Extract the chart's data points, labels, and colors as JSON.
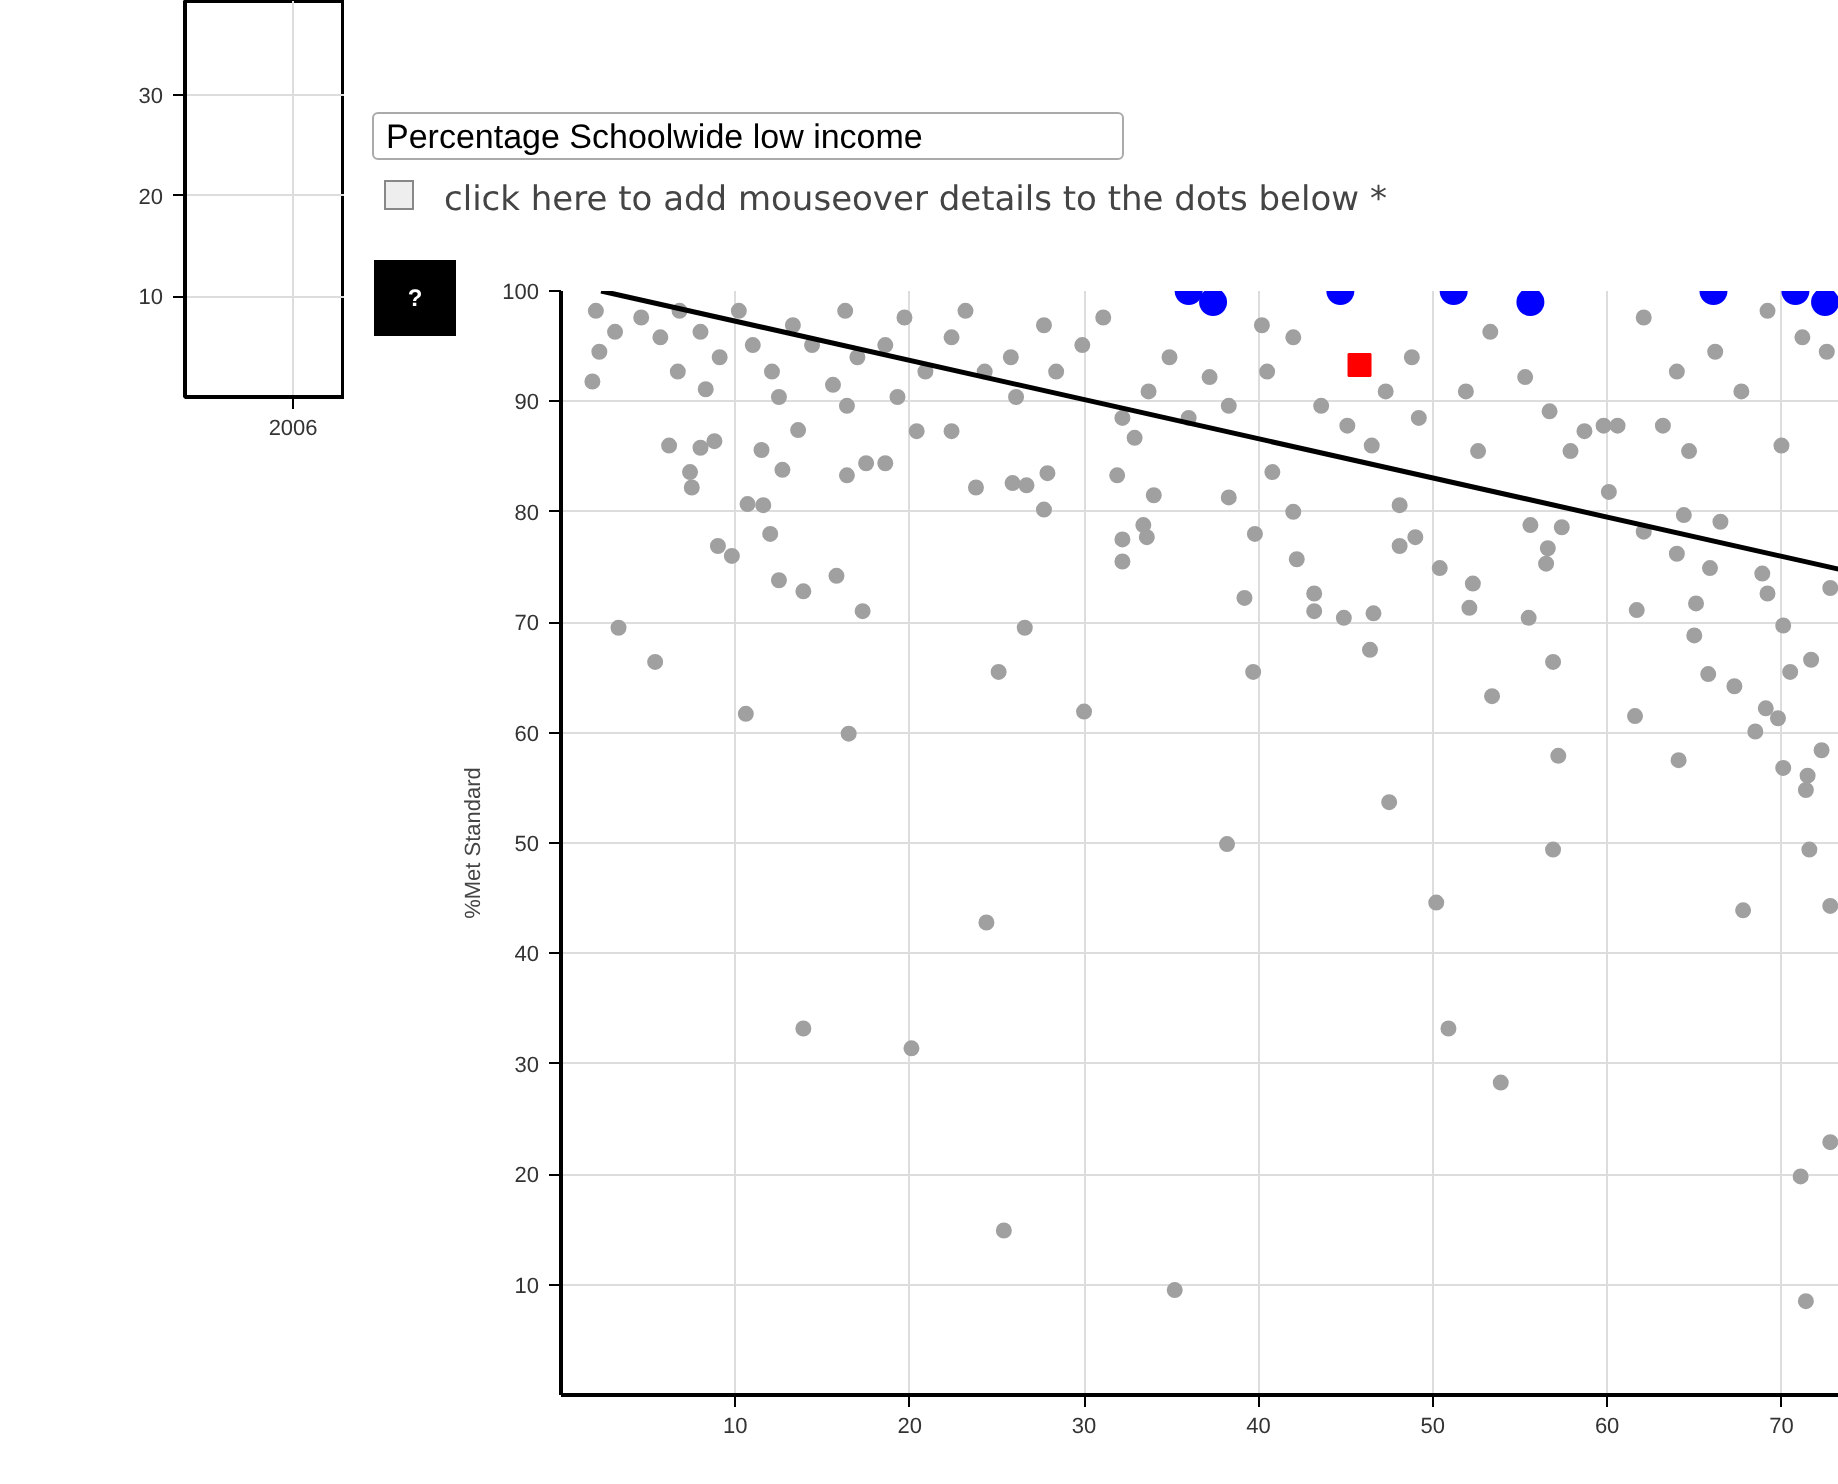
{
  "chart_data": [
    {
      "type": "line",
      "categories": [
        "2006"
      ],
      "values": [
        null
      ],
      "ylim": [
        0,
        39.4
      ],
      "yticks": [
        10,
        20,
        30
      ],
      "grid": true
    },
    {
      "type": "scatter",
      "ylabel": "%Met Standard",
      "annotations": [
        "Percentage Schoolwide low income",
        "click here to add mouseover details to the dots below *",
        "?"
      ],
      "xlim": [
        0,
        73.3
      ],
      "ylim": [
        0,
        100
      ],
      "xticks": [
        10,
        20,
        30,
        40,
        50,
        60,
        70
      ],
      "yticks": [
        10,
        20,
        30,
        40,
        50,
        60,
        70,
        80,
        90,
        100
      ],
      "grid": true,
      "marker": "circle",
      "series": [
        {
          "color": "#a0a0a0",
          "x": [
            13.9,
            20.1,
            24.4,
            25.4,
            35.2,
            38.2,
            47.5,
            50.2,
            50.9,
            53.9,
            56.9,
            67.8,
            71.6,
            72.8,
            72.8,
            71.1,
            71.4,
            3.3,
            5.4,
            10.6,
            16.5,
            30.0,
            25.1,
            26.6,
            17.3,
            15.8,
            13.9,
            12.5,
            12.0,
            9.0,
            9.8,
            10.7,
            11.6,
            7.5,
            7.4,
            6.2,
            8.0,
            8.8,
            11.5,
            12.7,
            13.6,
            16.4,
            17.5,
            18.6,
            1.8,
            8.3,
            23.8,
            25.9,
            26.7,
            27.7,
            27.9,
            31.9,
            32.2,
            32.2,
            33.4,
            33.6,
            34.0,
            39.7,
            39.2,
            43.2,
            43.2,
            44.9,
            46.6,
            46.4,
            53.4,
            56.9,
            57.2,
            61.6,
            64.1,
            67.3,
            65.8,
            65.0,
            65.1,
            61.7,
            55.5,
            52.1,
            52.3,
            56.5,
            56.6,
            57.4,
            55.6,
            64.0,
            65.9,
            68.9,
            69.2,
            68.5,
            69.1,
            69.8,
            70.1,
            70.5,
            71.7,
            72.3,
            70.1,
            71.5,
            71.4,
            66.5,
            64.4,
            62.1,
            60.1,
            42.2,
            39.8,
            48.1,
            49.0,
            50.4,
            72.8,
            2.0,
            3.1,
            2.2,
            4.6,
            5.7,
            6.8,
            8.0,
            6.7,
            9.1,
            10.2,
            11.0,
            12.1,
            13.3,
            14.4,
            15.6,
            17.0,
            16.3,
            18.6,
            19.7,
            20.9,
            22.4,
            23.2,
            24.3,
            25.8,
            26.1,
            27.7,
            28.4,
            29.9,
            31.1,
            32.2,
            32.9,
            33.7,
            34.9,
            36.0,
            19.3,
            20.4,
            22.4,
            16.4,
            12.5,
            37.2,
            38.3,
            40.5,
            40.2,
            42.0,
            43.6,
            45.1,
            47.3,
            48.8,
            49.2,
            51.9,
            53.3,
            52.6,
            55.3,
            56.7,
            58.7,
            59.8,
            62.1,
            64.0,
            66.2,
            67.7,
            63.2,
            64.7,
            69.2,
            71.2,
            70.0,
            72.6,
            40.8,
            46.5,
            38.3,
            42.0,
            48.1,
            57.9,
            60.6
          ],
          "values": [
            33.2,
            31.4,
            42.8,
            14.9,
            9.5,
            49.9,
            53.7,
            44.6,
            33.2,
            28.3,
            49.4,
            43.9,
            49.4,
            44.3,
            22.9,
            19.8,
            8.5,
            69.5,
            66.4,
            61.7,
            59.9,
            61.9,
            65.5,
            69.5,
            71.0,
            74.2,
            72.8,
            73.8,
            78.0,
            76.9,
            76.0,
            80.7,
            80.6,
            82.2,
            83.6,
            86.0,
            85.8,
            86.4,
            85.6,
            83.8,
            87.4,
            83.3,
            84.4,
            84.4,
            91.8,
            91.1,
            82.2,
            82.6,
            82.4,
            80.2,
            83.5,
            83.3,
            77.5,
            75.5,
            78.8,
            77.7,
            81.5,
            65.5,
            72.2,
            72.6,
            71.0,
            70.4,
            70.8,
            67.5,
            63.3,
            66.4,
            57.9,
            61.5,
            57.5,
            64.2,
            65.3,
            68.8,
            71.7,
            71.1,
            70.4,
            71.3,
            73.5,
            75.3,
            76.7,
            78.6,
            78.8,
            76.2,
            74.9,
            74.4,
            72.6,
            60.1,
            62.2,
            61.3,
            69.7,
            65.5,
            66.6,
            58.4,
            56.8,
            56.1,
            54.8,
            79.1,
            79.7,
            78.2,
            81.8,
            75.7,
            78.0,
            76.9,
            77.7,
            74.9,
            73.1,
            98.2,
            96.3,
            94.5,
            97.6,
            95.8,
            98.2,
            96.3,
            92.7,
            94.0,
            98.2,
            95.1,
            92.7,
            96.9,
            95.1,
            91.5,
            94.0,
            98.2,
            95.1,
            97.6,
            92.7,
            95.8,
            98.2,
            92.7,
            94.0,
            90.4,
            96.9,
            92.7,
            95.1,
            97.6,
            88.5,
            86.7,
            90.9,
            94.0,
            88.5,
            90.4,
            87.3,
            87.3,
            89.6,
            90.4,
            92.2,
            89.6,
            92.7,
            96.9,
            95.8,
            89.6,
            87.8,
            90.9,
            94.0,
            88.5,
            90.9,
            96.3,
            85.5,
            92.2,
            89.1,
            87.3,
            87.8,
            97.6,
            92.7,
            94.5,
            90.9,
            87.8,
            85.5,
            98.2,
            95.8,
            86.0,
            94.5,
            83.6,
            86.0,
            81.3,
            80.0,
            80.6,
            85.5,
            87.8
          ]
        },
        {
          "color": "#0000ff",
          "x": [
            36.0,
            37.4,
            44.7,
            51.2,
            55.6,
            66.1,
            70.8,
            72.5
          ],
          "values": [
            100,
            99,
            100,
            100,
            99,
            100,
            100,
            99
          ]
        },
        {
          "color": "#ff0000",
          "marker": "square",
          "x": [
            45.8
          ],
          "values": [
            93.3
          ]
        },
        {
          "type": "line",
          "marker": "none",
          "color": "#000000",
          "x": [
            2.3,
            73.3
          ],
          "values": [
            100,
            74.8
          ]
        }
      ]
    }
  ]
}
